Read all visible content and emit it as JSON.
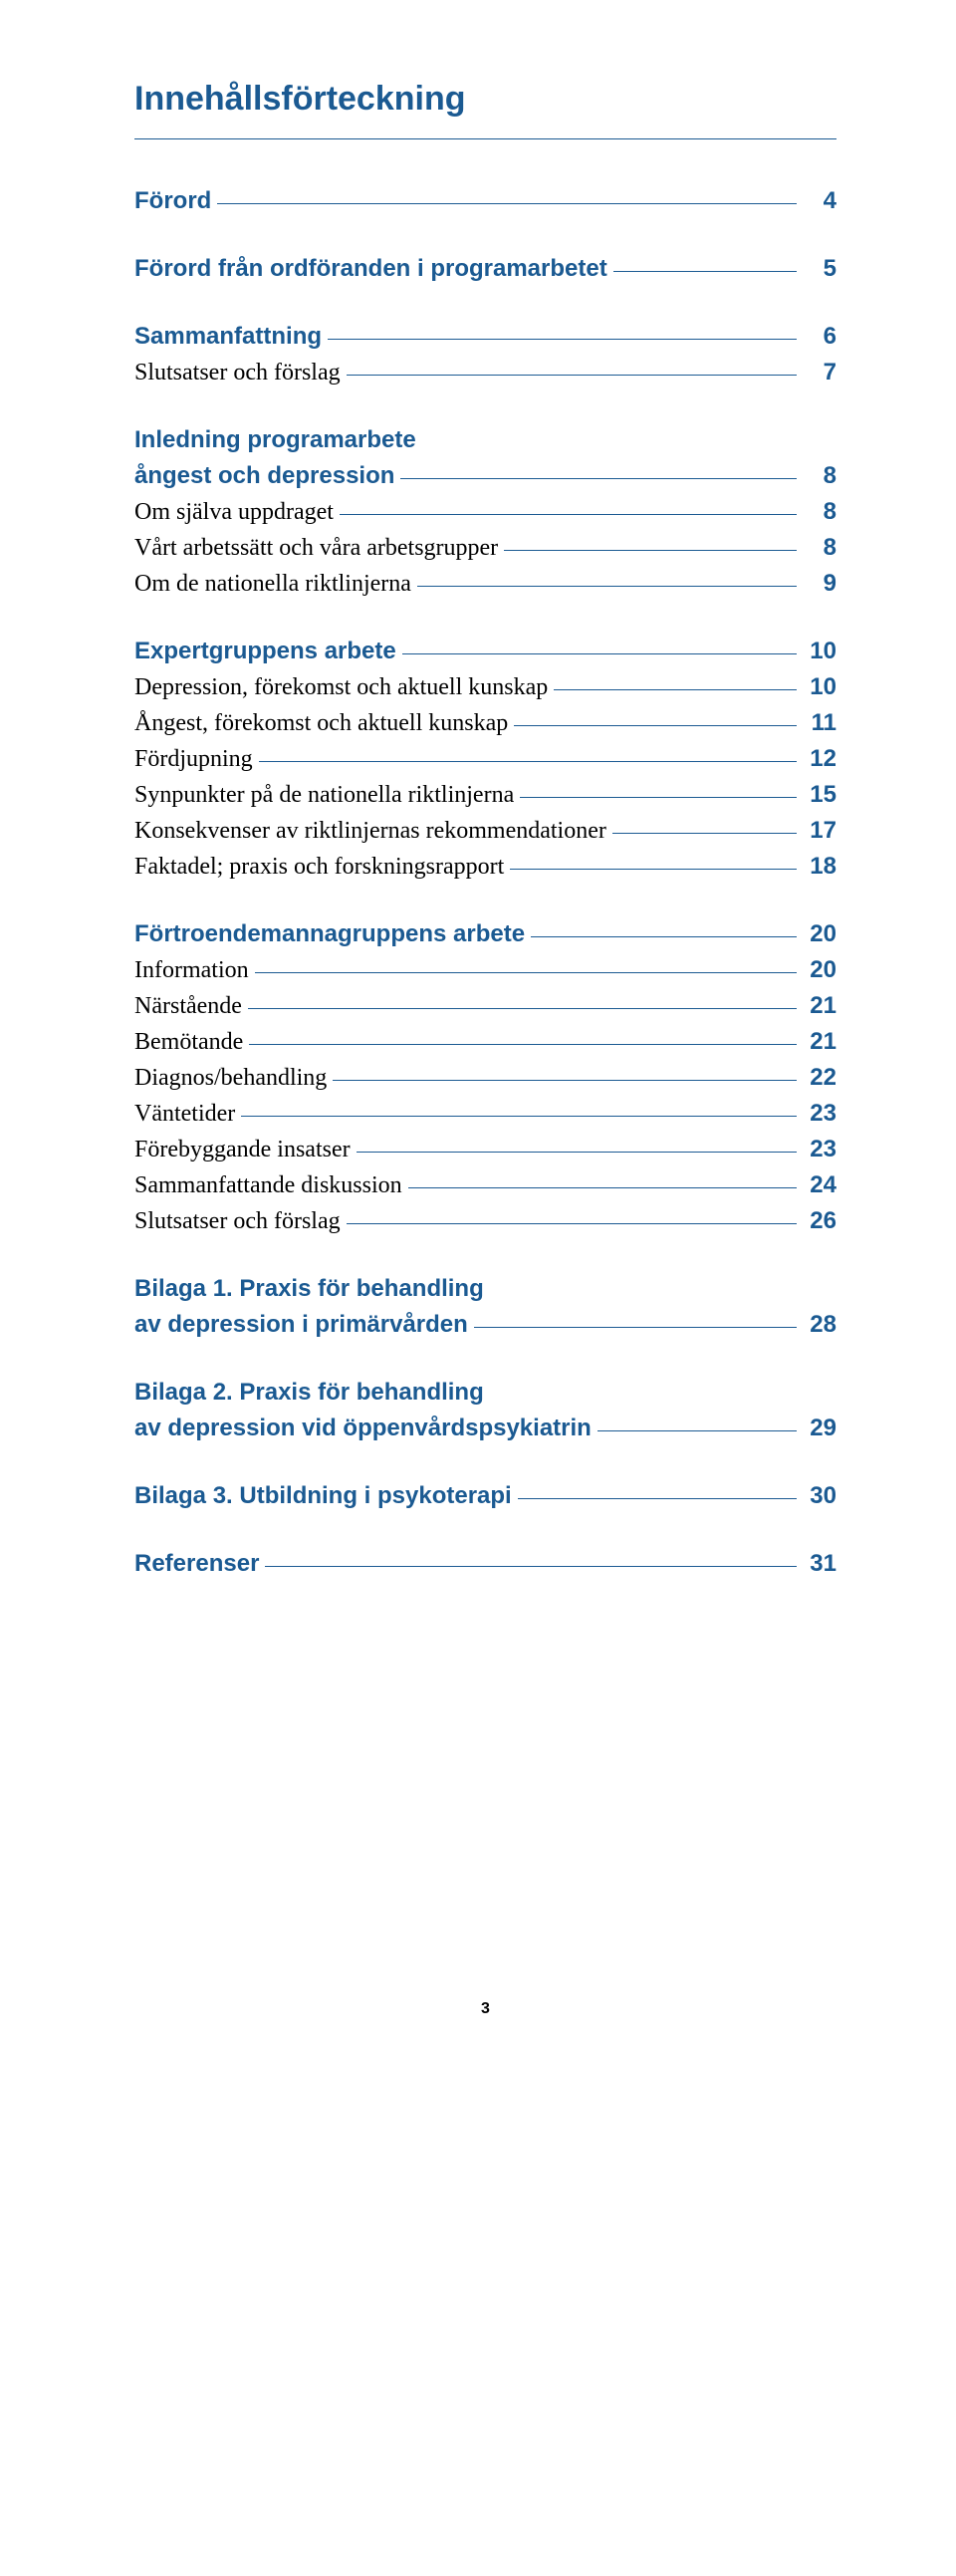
{
  "colors": {
    "heading_blue": "#1b5a92",
    "rule_blue": "#1b5a92",
    "body_black": "#000000",
    "background": "#ffffff"
  },
  "typography": {
    "heading_font": "Helvetica Neue, Arial, sans-serif",
    "body_font": "Georgia, Times New Roman, serif",
    "main_title_size_pt": 26,
    "row_size_pt": 18
  },
  "page_footer_number": "3",
  "main_title": "Innehållsförteckning",
  "sections": [
    {
      "heading": {
        "label": "Förord",
        "page": "4"
      },
      "items": []
    },
    {
      "heading": {
        "label": "Förord från ordföranden i programarbetet",
        "page": "5"
      },
      "items": []
    },
    {
      "heading": {
        "label": "Sammanfattning",
        "page": "6"
      },
      "items": [
        {
          "label": "Slutsatser och förslag",
          "page": "7"
        }
      ]
    },
    {
      "heading_lines": [
        "Inledning programarbete"
      ],
      "heading_last": {
        "label": "ångest och depression",
        "page": "8"
      },
      "items": [
        {
          "label": "Om själva uppdraget",
          "page": "8"
        },
        {
          "label": "Vårt arbetssätt och våra arbetsgrupper",
          "page": "8"
        },
        {
          "label": "Om de nationella riktlinjerna",
          "page": "9"
        }
      ]
    },
    {
      "heading": {
        "label": "Expertgruppens arbete",
        "page": "10"
      },
      "items": [
        {
          "label": "Depression, förekomst och aktuell kunskap",
          "page": "10"
        },
        {
          "label": "Ångest, förekomst och aktuell kunskap",
          "page": "11"
        },
        {
          "label": "Fördjupning",
          "page": "12"
        },
        {
          "label": "Synpunkter på de nationella riktlinjerna",
          "page": "15"
        },
        {
          "label": "Konsekvenser av riktlinjernas rekommendationer",
          "page": "17"
        },
        {
          "label": "Faktadel; praxis och forskningsrapport",
          "page": "18"
        }
      ]
    },
    {
      "heading": {
        "label": "Förtroendemannagruppens arbete",
        "page": "20"
      },
      "items": [
        {
          "label": "Information",
          "page": "20"
        },
        {
          "label": "Närstående",
          "page": "21"
        },
        {
          "label": "Bemötande",
          "page": "21"
        },
        {
          "label": "Diagnos/behandling",
          "page": "22"
        },
        {
          "label": "Väntetider",
          "page": "23"
        },
        {
          "label": "Förebyggande insatser",
          "page": "23"
        },
        {
          "label": "Sammanfattande diskussion",
          "page": "24"
        },
        {
          "label": "Slutsatser och förslag",
          "page": "26"
        }
      ]
    },
    {
      "heading_lines": [
        "Bilaga 1. Praxis för behandling"
      ],
      "heading_last": {
        "label": "av depression i primärvården",
        "page": "28"
      },
      "items": []
    },
    {
      "heading_lines": [
        "Bilaga 2. Praxis för behandling"
      ],
      "heading_last": {
        "label": "av depression vid öppenvårdspsykiatrin",
        "page": "29"
      },
      "items": []
    },
    {
      "heading": {
        "label": "Bilaga 3. Utbildning i psykoterapi",
        "page": "30"
      },
      "items": []
    },
    {
      "heading": {
        "label": "Referenser",
        "page": "31"
      },
      "items": []
    }
  ]
}
